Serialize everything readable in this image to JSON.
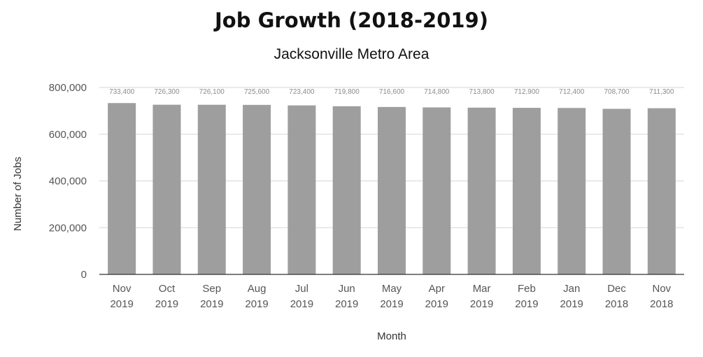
{
  "chart_data": {
    "type": "bar",
    "title": "Job Growth (2018-2019)",
    "subtitle": "Jacksonville Metro Area",
    "xlabel": "Month",
    "ylabel": "Number of Jobs",
    "categories": [
      [
        "Nov",
        "2019"
      ],
      [
        "Oct",
        "2019"
      ],
      [
        "Sep",
        "2019"
      ],
      [
        "Aug",
        "2019"
      ],
      [
        "Jul",
        "2019"
      ],
      [
        "Jun",
        "2019"
      ],
      [
        "May",
        "2019"
      ],
      [
        "Apr",
        "2019"
      ],
      [
        "Mar",
        "2019"
      ],
      [
        "Feb",
        "2019"
      ],
      [
        "Jan",
        "2019"
      ],
      [
        "Dec",
        "2018"
      ],
      [
        "Nov",
        "2018"
      ]
    ],
    "values": [
      733400,
      726300,
      726100,
      725600,
      723400,
      719800,
      716600,
      714800,
      713800,
      712900,
      712400,
      708700,
      711300
    ],
    "data_labels": [
      "733,400",
      "726,300",
      "726,100",
      "725,600",
      "723,400",
      "719,800",
      "716,600",
      "714,800",
      "713,800",
      "712,900",
      "712,400",
      "708,700",
      "711,300"
    ],
    "ylim": [
      0,
      800000
    ],
    "yticks": [
      0,
      200000,
      400000,
      600000,
      800000
    ],
    "ytick_labels": [
      "0",
      "200,000",
      "400,000",
      "600,000",
      "800,000"
    ],
    "grid": true,
    "legend": "none",
    "bar_color": "#9e9e9e"
  }
}
